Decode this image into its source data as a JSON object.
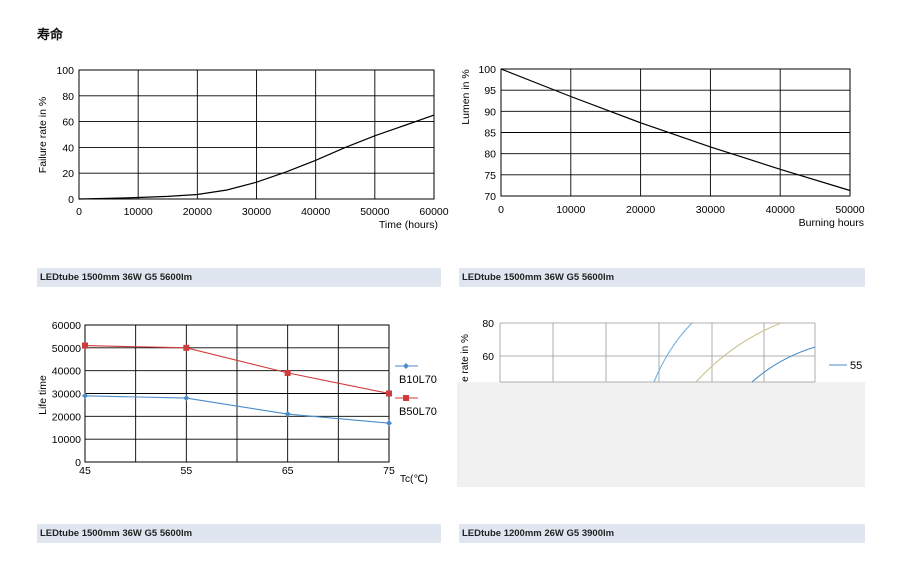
{
  "page": {
    "title": "寿命"
  },
  "captions": [
    "LEDtube 1500mm 36W G5 5600lm",
    "LEDtube 1500mm 36W G5 5600lm",
    "LEDtube 1500mm 36W G5 5600lm",
    "LEDtube 1200mm 26W G5 3900lm"
  ],
  "colors": {
    "caption_bg": "#dfe6ef",
    "series_blue": "#4a8bc8",
    "series_red": "#d03b3b",
    "curve_light": "#6fb0dd",
    "curve_tan": "#c9c48a"
  },
  "chart_data": [
    {
      "type": "line",
      "title": "",
      "xlabel": "Time (hours)",
      "ylabel": "Failure rate in %",
      "xlim": [
        0,
        60000
      ],
      "ylim": [
        0,
        100
      ],
      "x_ticks": [
        "0",
        "10000",
        "20000",
        "30000",
        "40000",
        "50000",
        "60000"
      ],
      "y_ticks": [
        "0",
        "20",
        "40",
        "60",
        "80",
        "100"
      ],
      "grid": true,
      "series": [
        {
          "x": [
            0,
            5000,
            10000,
            15000,
            20000,
            25000,
            30000,
            35000,
            40000,
            45000,
            50000,
            55000,
            60000
          ],
          "y": [
            0,
            0.5,
            1.2,
            2,
            3.5,
            7,
            13,
            21,
            30,
            40,
            49,
            57,
            65
          ]
        }
      ]
    },
    {
      "type": "line",
      "title": "",
      "xlabel": "Burning hours",
      "ylabel": "Lumen in %",
      "xlim": [
        0,
        50000
      ],
      "ylim": [
        70,
        100
      ],
      "x_ticks": [
        "0",
        "10000",
        "20000",
        "30000",
        "40000",
        "50000"
      ],
      "y_ticks": [
        "70",
        "75",
        "80",
        "85",
        "90",
        "95",
        "100"
      ],
      "grid": true,
      "series": [
        {
          "x": [
            0,
            10000,
            20000,
            30000,
            40000,
            50000
          ],
          "y": [
            100,
            93.5,
            87.3,
            81.6,
            76.3,
            71.3
          ]
        }
      ]
    },
    {
      "type": "line",
      "title": "",
      "xlabel": "Tc(℃)",
      "ylabel": "Life time",
      "xlim": [
        45,
        75
      ],
      "ylim": [
        0,
        60000
      ],
      "x_ticks": [
        "45",
        "55",
        "65",
        "75"
      ],
      "y_ticks": [
        "0",
        "10000",
        "20000",
        "30000",
        "40000",
        "50000",
        "60000"
      ],
      "grid": true,
      "legend_position": "right",
      "series": [
        {
          "name": "B10L70",
          "marker": "diamond",
          "x": [
            45,
            55,
            65,
            75
          ],
          "y": [
            29000,
            28000,
            21000,
            17000
          ]
        },
        {
          "name": "B50L70",
          "marker": "square",
          "x": [
            45,
            55,
            65,
            75
          ],
          "y": [
            51000,
            50000,
            39000,
            30000
          ]
        }
      ]
    },
    {
      "type": "line",
      "title": "",
      "xlabel": "",
      "ylabel": "e rate in %",
      "y_ticks": [
        "60",
        "80"
      ],
      "grid": true,
      "cropped": true,
      "legend_position": "right",
      "legend": [
        "55"
      ],
      "series": [
        {
          "x": [
            0,
            1,
            2,
            3
          ],
          "y": [
            46,
            58,
            72,
            80
          ]
        },
        {
          "x": [
            0,
            1,
            2,
            3
          ],
          "y": [
            46,
            58,
            72,
            80
          ]
        },
        {
          "x": [
            0,
            1,
            2,
            3
          ],
          "y": [
            46,
            54,
            62,
            66
          ]
        }
      ]
    }
  ]
}
